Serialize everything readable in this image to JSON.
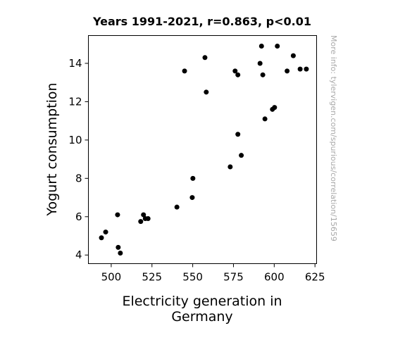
{
  "chart_data": {
    "type": "scatter",
    "title": "Years 1991-2021, r=0.863, p<0.01",
    "xlabel": [
      "Electricity generation in",
      "Germany"
    ],
    "ylabel": "Yogurt consumption",
    "credit": "More info: tylervigen.com/spurious/correlation/15659",
    "xlim": [
      486,
      626
    ],
    "ylim": [
      3.55,
      15.45
    ],
    "xticks": [
      500,
      525,
      550,
      575,
      600,
      625
    ],
    "yticks": [
      4,
      6,
      8,
      10,
      12,
      14
    ],
    "grid": false,
    "marker_color": "#000000",
    "points": [
      {
        "x": 494.0,
        "y": 4.9
      },
      {
        "x": 496.6,
        "y": 5.2
      },
      {
        "x": 503.9,
        "y": 6.1
      },
      {
        "x": 504.3,
        "y": 4.4
      },
      {
        "x": 505.6,
        "y": 4.1
      },
      {
        "x": 518.1,
        "y": 5.75
      },
      {
        "x": 519.8,
        "y": 6.1
      },
      {
        "x": 520.9,
        "y": 5.9
      },
      {
        "x": 522.6,
        "y": 5.9
      },
      {
        "x": 540.3,
        "y": 6.5
      },
      {
        "x": 545.0,
        "y": 13.6
      },
      {
        "x": 549.7,
        "y": 7.0
      },
      {
        "x": 550.1,
        "y": 8.0
      },
      {
        "x": 557.5,
        "y": 14.3
      },
      {
        "x": 558.3,
        "y": 12.5
      },
      {
        "x": 573.0,
        "y": 8.6
      },
      {
        "x": 576.0,
        "y": 13.6
      },
      {
        "x": 577.7,
        "y": 13.4
      },
      {
        "x": 577.7,
        "y": 10.3
      },
      {
        "x": 579.8,
        "y": 9.2
      },
      {
        "x": 591.3,
        "y": 14.0
      },
      {
        "x": 592.2,
        "y": 14.9
      },
      {
        "x": 593.0,
        "y": 13.4
      },
      {
        "x": 594.3,
        "y": 11.1
      },
      {
        "x": 598.9,
        "y": 11.6
      },
      {
        "x": 600.2,
        "y": 11.7
      },
      {
        "x": 601.9,
        "y": 14.9
      },
      {
        "x": 607.9,
        "y": 13.6
      },
      {
        "x": 611.7,
        "y": 14.4
      },
      {
        "x": 615.9,
        "y": 13.7
      },
      {
        "x": 619.7,
        "y": 13.7
      }
    ]
  }
}
